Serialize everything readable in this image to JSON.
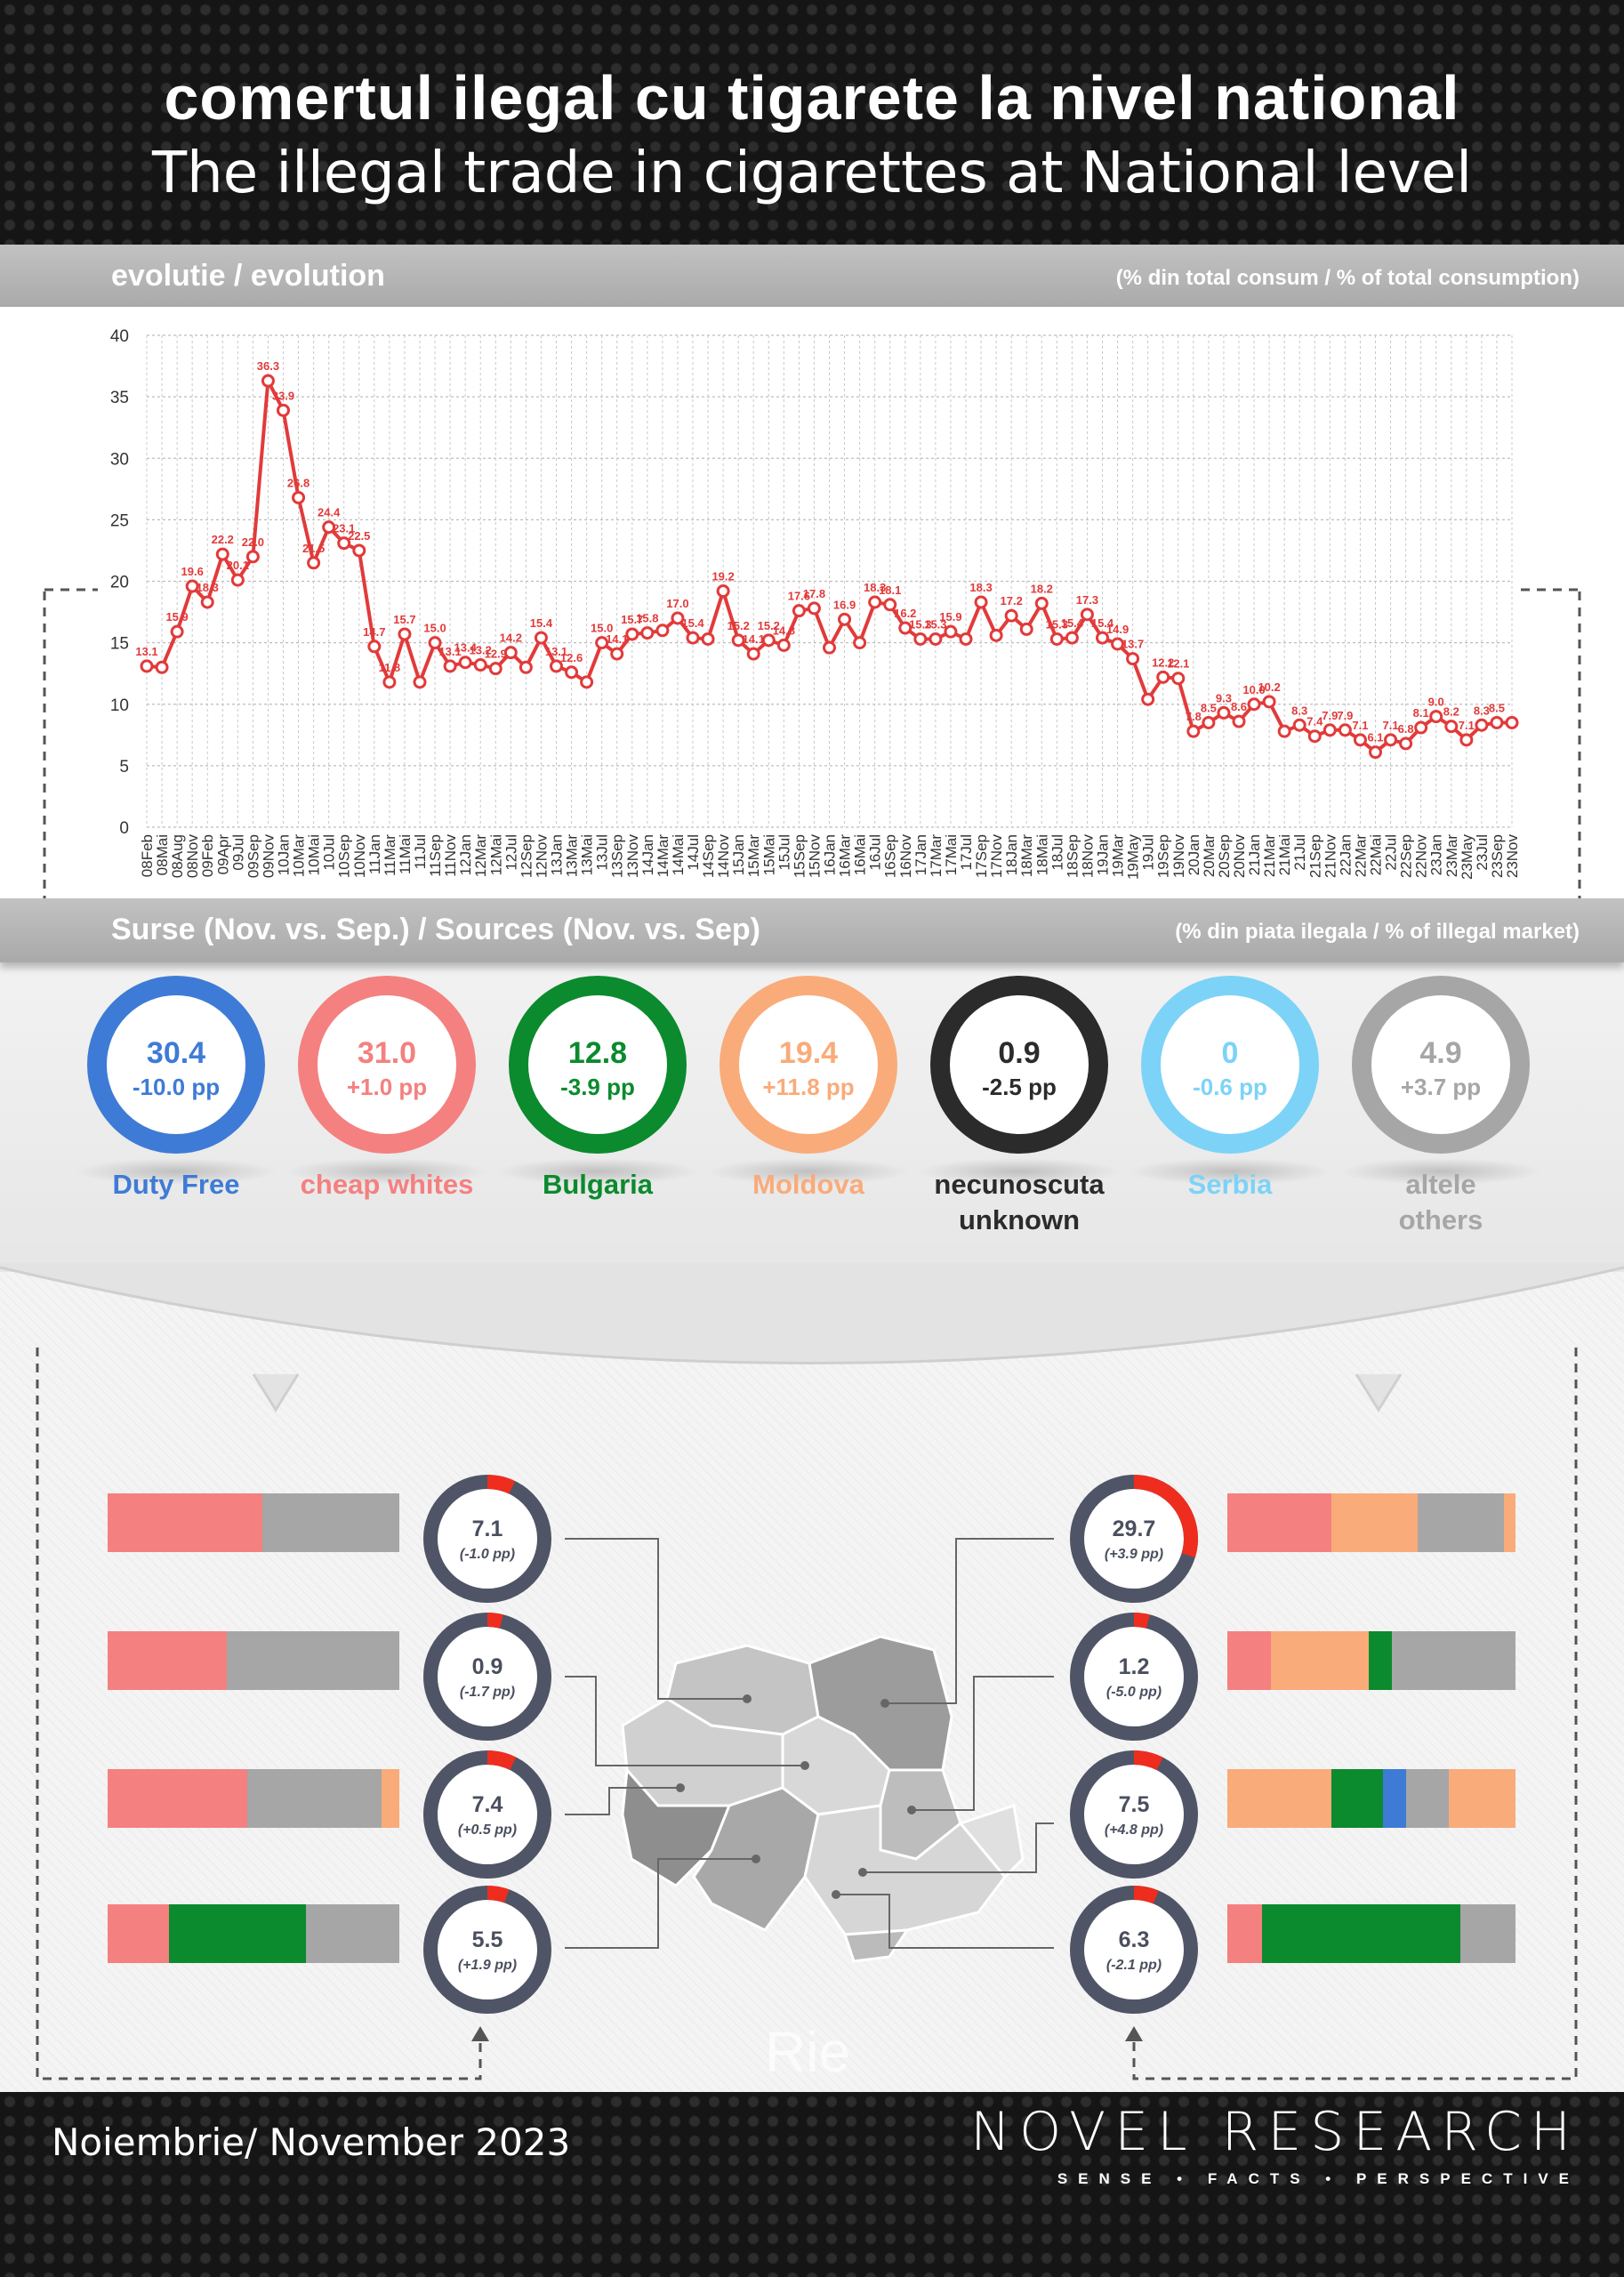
{
  "header": {
    "title_ro": "comertul ilegal cu tigarete la nivel national",
    "title_en": "The illegal trade in cigarettes at National level"
  },
  "evolution_band": {
    "label": "evolutie / evolution",
    "unit": "(% din total consum / % of total consumption)"
  },
  "sources_band": {
    "label": "Surse (Nov. vs. Sep.) / Sources (Nov. vs. Sep)",
    "unit": "(% din piata ilegala / % of illegal market)"
  },
  "colors": {
    "duty_free": "#3e7bd6",
    "cheap_whites": "#f48080",
    "bulgaria": "#0b8a2e",
    "moldova": "#f9ab7a",
    "unknown": "#2b2b2b",
    "serbia": "#7cd3f7",
    "others": "#a6a6a6",
    "line": "#e23a3a",
    "donut_ring": "#4f5566",
    "donut_accent": "#ee2d1f"
  },
  "sources": [
    {
      "value": "30.4",
      "delta": "-10.0 pp",
      "label1": "Duty Free",
      "label2": "",
      "color": "#3e7bd6"
    },
    {
      "value": "31.0",
      "delta": "+1.0 pp",
      "label1": "cheap whites",
      "label2": "",
      "color": "#f48080"
    },
    {
      "value": "12.8",
      "delta": "-3.9 pp",
      "label1": "Bulgaria",
      "label2": "",
      "color": "#0b8a2e"
    },
    {
      "value": "19.4",
      "delta": "+11.8 pp",
      "label1": "Moldova",
      "label2": "",
      "color": "#f9ab7a"
    },
    {
      "value": "0.9",
      "delta": "-2.5 pp",
      "label1": "necunoscuta",
      "label2": "unknown",
      "color": "#2b2b2b"
    },
    {
      "value": "0",
      "delta": "-0.6 pp",
      "label1": "Serbia",
      "label2": "",
      "color": "#7cd3f7"
    },
    {
      "value": "4.9",
      "delta": "+3.7 pp",
      "label1": "altele",
      "label2": "others",
      "color": "#a6a6a6"
    }
  ],
  "regions_left": [
    {
      "value": "7.1",
      "delta": "(-1.0 pp)",
      "share": 7.1
    },
    {
      "value": "0.9",
      "delta": "(-1.7 pp)",
      "share": 0.9
    },
    {
      "value": "7.4",
      "delta": "(+0.5 pp)",
      "share": 7.4
    },
    {
      "value": "5.5",
      "delta": "(+1.9 pp)",
      "share": 5.5
    }
  ],
  "regions_right": [
    {
      "value": "29.7",
      "delta": "(+3.9 pp)",
      "share": 29.7
    },
    {
      "value": "1.2",
      "delta": "(-5.0 pp)",
      "share": 1.2
    },
    {
      "value": "7.5",
      "delta": "(+4.8 pp)",
      "share": 7.5
    },
    {
      "value": "6.3",
      "delta": "(-2.1 pp)",
      "share": 6.3
    }
  ],
  "stacks_left": [
    [
      {
        "c": "#f48080",
        "w": 53
      },
      {
        "c": "#a6a6a6",
        "w": 47
      }
    ],
    [
      {
        "c": "#f48080",
        "w": 41
      },
      {
        "c": "#a6a6a6",
        "w": 59
      }
    ],
    [
      {
        "c": "#f48080",
        "w": 48
      },
      {
        "c": "#a6a6a6",
        "w": 46
      },
      {
        "c": "#f9ab7a",
        "w": 6
      }
    ],
    [
      {
        "c": "#f48080",
        "w": 21
      },
      {
        "c": "#0b8a2e",
        "w": 47
      },
      {
        "c": "#a6a6a6",
        "w": 32
      }
    ]
  ],
  "stacks_right": [
    [
      {
        "c": "#f48080",
        "w": 36
      },
      {
        "c": "#f9ab7a",
        "w": 30
      },
      {
        "c": "#a6a6a6",
        "w": 30
      },
      {
        "c": "#f9ab7a",
        "w": 4
      }
    ],
    [
      {
        "c": "#f48080",
        "w": 15
      },
      {
        "c": "#f9ab7a",
        "w": 34
      },
      {
        "c": "#0b8a2e",
        "w": 8
      },
      {
        "c": "#a6a6a6",
        "w": 43
      }
    ],
    [
      {
        "c": "#f9ab7a",
        "w": 36
      },
      {
        "c": "#0b8a2e",
        "w": 18
      },
      {
        "c": "#3e7bd6",
        "w": 8
      },
      {
        "c": "#a6a6a6",
        "w": 15
      },
      {
        "c": "#f9ab7a",
        "w": 23
      }
    ],
    [
      {
        "c": "#f48080",
        "w": 12
      },
      {
        "c": "#0b8a2e",
        "w": 69
      },
      {
        "c": "#a6a6a6",
        "w": 19
      }
    ]
  ],
  "watermark": "Rie",
  "footer": {
    "date": "Noiembrie/ November 2023",
    "brand": "NOVEL RESEARCH",
    "tagline": "SENSE • FACTS • PERSPECTIVE"
  },
  "chart_data": {
    "type": "line",
    "title": "evolutie / evolution",
    "ylabel": "",
    "xlabel": "",
    "ylim": [
      0,
      40
    ],
    "yticks": [
      0,
      5,
      10,
      15,
      20,
      25,
      30,
      35,
      40
    ],
    "grid": true,
    "categories": [
      "08Feb",
      "08Mai",
      "08Aug",
      "08Nov",
      "09Feb",
      "09Apr",
      "09Jul",
      "09Sep",
      "09Nov",
      "10Jan",
      "10Mar",
      "10Mai",
      "10Jul",
      "10Sep",
      "10Nov",
      "11Jan",
      "11Mar",
      "11Mai",
      "11Jul",
      "11Sep",
      "11Nov",
      "12Jan",
      "12Mar",
      "12Mai",
      "12Jul",
      "12Sep",
      "12Nov",
      "13Jan",
      "13Mar",
      "13Mai",
      "13Jul",
      "13Sep",
      "13Nov",
      "14Jan",
      "14Mar",
      "14Mai",
      "14Jul",
      "14Sep",
      "14Nov",
      "15Jan",
      "15Mar",
      "15Mai",
      "15Jul",
      "15Sep",
      "15Nov",
      "16Jan",
      "16Mar",
      "16Mai",
      "16Jul",
      "16Sep",
      "16Nov",
      "17Jan",
      "17Mar",
      "17Mai",
      "17Jul",
      "17Sep",
      "17Nov",
      "18Jan",
      "18Mar",
      "18Mai",
      "18Jul",
      "18Sep",
      "18Nov",
      "19Jan",
      "19Mar",
      "19May",
      "19Jul",
      "19Sep",
      "19Nov",
      "20Jan",
      "20Mar",
      "20Sep",
      "20Nov",
      "21Jan",
      "21Mar",
      "21Mai",
      "21Jul",
      "21Sep",
      "21Nov",
      "22Jan",
      "22Mar",
      "22Mai",
      "22Jul",
      "22Sep",
      "22Nov",
      "23Jan",
      "23Mar",
      "23May",
      "23Jul",
      "23Sep",
      "23Nov"
    ],
    "values": [
      13.1,
      13.0,
      15.9,
      19.6,
      18.3,
      22.2,
      20.1,
      22.0,
      36.3,
      33.9,
      26.8,
      21.5,
      24.4,
      23.1,
      22.5,
      14.7,
      11.8,
      15.7,
      11.8,
      15.0,
      13.1,
      13.4,
      13.2,
      12.9,
      14.2,
      13.0,
      15.4,
      13.1,
      12.6,
      11.8,
      15.0,
      14.1,
      15.7,
      15.8,
      16.0,
      17.0,
      15.4,
      15.3,
      19.2,
      15.2,
      14.1,
      15.2,
      14.8,
      17.6,
      17.8,
      14.6,
      16.9,
      15.0,
      18.3,
      18.1,
      16.2,
      15.3,
      15.3,
      15.9,
      15.3,
      18.3,
      15.6,
      17.2,
      16.1,
      18.2,
      15.3,
      15.4,
      17.3,
      15.4,
      14.9,
      13.7,
      10.4,
      12.2,
      12.1,
      7.8,
      8.5,
      9.3,
      8.6,
      10.0,
      10.2,
      7.8,
      8.3,
      7.4,
      7.9,
      7.9,
      7.1,
      6.1,
      7.1,
      6.8,
      8.1,
      9.0,
      8.2,
      7.1,
      8.3,
      8.5,
      8.5
    ],
    "data_labels": [
      "13.1",
      "",
      "15.9",
      "19.6",
      "18.3",
      "22.2",
      "20.1",
      "22.0",
      "36.3",
      "33.9",
      "26.8",
      "21.5",
      "24.4",
      "23.1",
      "22.5",
      "14.7",
      "11.8",
      "15.7",
      "",
      "15.0",
      "13.1",
      "13.4",
      "13.2",
      "12.9",
      "14.2",
      "",
      "15.4",
      "13.1",
      "12.6",
      "",
      "15.0",
      "14.1",
      "15.7",
      "15.8",
      "",
      "17.0",
      "15.4",
      "",
      "19.2",
      "15.2",
      "14.1",
      "15.2",
      "14.8",
      "17.6",
      "17.8",
      "",
      "16.9",
      "",
      "18.3",
      "18.1",
      "16.2",
      "15.3",
      "15.3",
      "15.9",
      "",
      "18.3",
      "",
      "17.2",
      "",
      "18.2",
      "15.3",
      "15.4",
      "17.3",
      "15.4",
      "14.9",
      "13.7",
      "",
      "12.2",
      "12.1",
      "7.8",
      "8.5",
      "9.3",
      "8.6",
      "10.0",
      "10.2",
      "",
      "8.3",
      "7.4",
      "7.9",
      "7.9",
      "7.1",
      "6.1",
      "7.1",
      "6.8",
      "8.1",
      "9.0",
      "8.2",
      "7.1",
      "8.3",
      "8.5",
      ""
    ]
  }
}
